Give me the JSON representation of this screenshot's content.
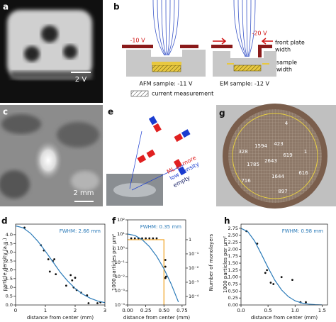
{
  "panels": {
    "a": {
      "label": "a",
      "scale_bar": "2 V"
    },
    "b": {
      "label": "b",
      "left_voltage": "-10 V",
      "right_voltage": "-20 V",
      "front_plate_width": [
        "front plate",
        "width"
      ],
      "sample_width": [
        "sample",
        "width"
      ],
      "afm_caption": "AFM sample: -11 V",
      "em_caption": "EM sample: -12 V",
      "legend": "current measurement"
    },
    "c": {
      "label": "c",
      "scale_bar": "2 mm"
    },
    "e": {
      "label": "e",
      "levels": [
        "ML or more",
        "low density",
        "empty"
      ]
    },
    "g": {
      "label": "g",
      "counts": [
        4,
        1594,
        423,
        328,
        619,
        1,
        1785,
        2643,
        716,
        1644,
        616,
        897
      ]
    }
  },
  "chart_data": [
    {
      "type": "scatter",
      "panel": "d",
      "xlabel": "distance from center (mm)",
      "ylabel": "particle density (a.u.)",
      "annotation": "FWHM: 2.66 mm",
      "xlim": [
        0,
        3
      ],
      "xticks": [
        0,
        1,
        2,
        3
      ],
      "ylim": [
        0,
        4.6
      ],
      "yticks": [
        {
          "value": 0,
          "label": "0.0"
        },
        {
          "value": 0.5,
          "label": "0.5"
        },
        {
          "value": 1,
          "label": "1.0"
        },
        {
          "value": 1.5,
          "label": "1.5"
        },
        {
          "value": 2,
          "label": "2.0"
        },
        {
          "value": 2.5,
          "label": "2.5"
        },
        {
          "value": 3,
          "label": "3.0"
        },
        {
          "value": 3.5,
          "label": "3.5"
        },
        {
          "value": 4,
          "label": "4.0"
        }
      ],
      "series": [
        {
          "mode": "markers",
          "color": "#111111",
          "x": [
            0.3,
            0.85,
            0.95,
            1.1,
            1.25,
            1.3,
            1.15,
            1.35,
            1.85,
            1.9,
            2.0,
            1.7,
            1.95,
            2.05,
            2.2,
            2.4,
            2.45,
            2.75,
            2.85
          ],
          "y": [
            4.4,
            3.4,
            3.1,
            2.6,
            2.5,
            2.6,
            1.9,
            1.75,
            1.7,
            1.4,
            1.55,
            1.1,
            1.0,
            0.85,
            0.7,
            0.55,
            0.1,
            0.1,
            0.15
          ]
        },
        {
          "mode": "line",
          "color": "#2a7ab8",
          "x": [
            0,
            0.25,
            0.5,
            0.75,
            1,
            1.25,
            1.5,
            1.75,
            2,
            2.25,
            2.5,
            2.75,
            3
          ],
          "y": [
            4.5,
            4.39,
            4.08,
            3.62,
            3.06,
            2.46,
            1.86,
            1.36,
            0.94,
            0.62,
            0.39,
            0.23,
            0.13
          ]
        }
      ]
    },
    {
      "type": "scatter",
      "panel": "f",
      "xlabel": "distance from center (mm)",
      "ylabel": "1000 particles per µm²",
      "y2label": "Number of monolayers",
      "annotation": "FWHM: 0.35 mm",
      "xlim": [
        0,
        0.8
      ],
      "xticks": [
        {
          "value": 0,
          "label": "0.00"
        },
        {
          "value": 0.25,
          "label": "0.25"
        },
        {
          "value": 0.5,
          "label": "0.50"
        },
        {
          "value": 0.75,
          "label": "0.75"
        }
      ],
      "ylog": true,
      "ylim": [
        0.0001,
        100
      ],
      "yticks": [
        {
          "value": 0.0001,
          "label": "10⁻⁴"
        },
        {
          "value": 0.001,
          "label": "10⁻³"
        },
        {
          "value": 0.01,
          "label": "10⁻²"
        },
        {
          "value": 0.1,
          "label": "10⁻¹"
        },
        {
          "value": 1,
          "label": "10⁰"
        },
        {
          "value": 10,
          "label": "10¹"
        },
        {
          "value": 100,
          "label": "10²"
        }
      ],
      "y2log": true,
      "y2lim": [
        2.5e-05,
        25
      ],
      "y2ticks": [
        {
          "value": 0.0001,
          "label": "10⁻⁴"
        },
        {
          "value": 0.001,
          "label": "10⁻³"
        },
        {
          "value": 0.01,
          "label": "10⁻²"
        },
        {
          "value": 0.1,
          "label": "10⁻¹"
        },
        1
      ],
      "series": [
        {
          "mode": "line",
          "color": "#f0a020",
          "axis": "y2",
          "x": [
            0,
            0.5,
            0.5
          ],
          "y": [
            1,
            1,
            2.5e-05
          ]
        },
        {
          "mode": "markers",
          "color": "#111111",
          "x": [
            0.05,
            0.1,
            0.15,
            0.2,
            0.25,
            0.3,
            0.35,
            0.4,
            0.52,
            0.52,
            0.53,
            0.52
          ],
          "y": [
            5,
            5,
            5,
            5,
            5,
            5,
            5,
            5,
            0.15,
            0.05,
            0.01,
            0.008
          ]
        },
        {
          "mode": "line",
          "color": "#2a7ab8",
          "x": [
            0,
            0.1,
            0.2,
            0.3,
            0.4,
            0.5,
            0.6,
            0.7
          ],
          "y": [
            10,
            7.98,
            4.06,
            1.31,
            0.273,
            0.036,
            0.003,
            0.00016
          ]
        }
      ]
    },
    {
      "type": "scatter",
      "panel": "h",
      "xlabel": "distance from center (mm)",
      "ylabel": "1000 particles per µm²",
      "annotation": "FWHM: 0.98 mm",
      "xlim": [
        0,
        1.6
      ],
      "xticks": [
        {
          "value": 0,
          "label": "0.0"
        },
        {
          "value": 0.5,
          "label": "0.5"
        },
        {
          "value": 1,
          "label": "1.0"
        },
        {
          "value": 1.5,
          "label": "1.5"
        }
      ],
      "ylim": [
        0,
        2.9
      ],
      "yticks": [
        {
          "value": 0,
          "label": "0.00"
        },
        {
          "value": 0.25,
          "label": "0.25"
        },
        {
          "value": 0.5,
          "label": "0.50"
        },
        {
          "value": 0.75,
          "label": "0.75"
        },
        {
          "value": 1,
          "label": "1.00"
        },
        {
          "value": 1.25,
          "label": "1.25"
        },
        {
          "value": 1.5,
          "label": "1.50"
        },
        {
          "value": 1.75,
          "label": "1.75"
        },
        {
          "value": 2,
          "label": "2.00"
        },
        {
          "value": 2.25,
          "label": "2.25"
        },
        {
          "value": 2.5,
          "label": "2.50"
        },
        {
          "value": 2.75,
          "label": "2.75"
        }
      ],
      "series": [
        {
          "mode": "markers",
          "color": "#111111",
          "x": [
            0.1,
            0.3,
            0.45,
            0.48,
            0.55,
            0.6,
            0.75,
            0.95,
            1.1,
            1.2
          ],
          "y": [
            2.65,
            2.2,
            1.15,
            1.25,
            0.8,
            0.75,
            1.0,
            0.9,
            0.1,
            0.1
          ]
        },
        {
          "mode": "line",
          "color": "#2a7ab8",
          "x": [
            0,
            0.125,
            0.25,
            0.375,
            0.5,
            0.625,
            0.75,
            0.875,
            1,
            1.125,
            1.25,
            1.375,
            1.5
          ],
          "y": [
            2.75,
            2.63,
            2.3,
            1.83,
            1.34,
            0.89,
            0.54,
            0.3,
            0.15,
            0.07,
            0.03,
            0.01,
            0
          ]
        }
      ]
    }
  ]
}
